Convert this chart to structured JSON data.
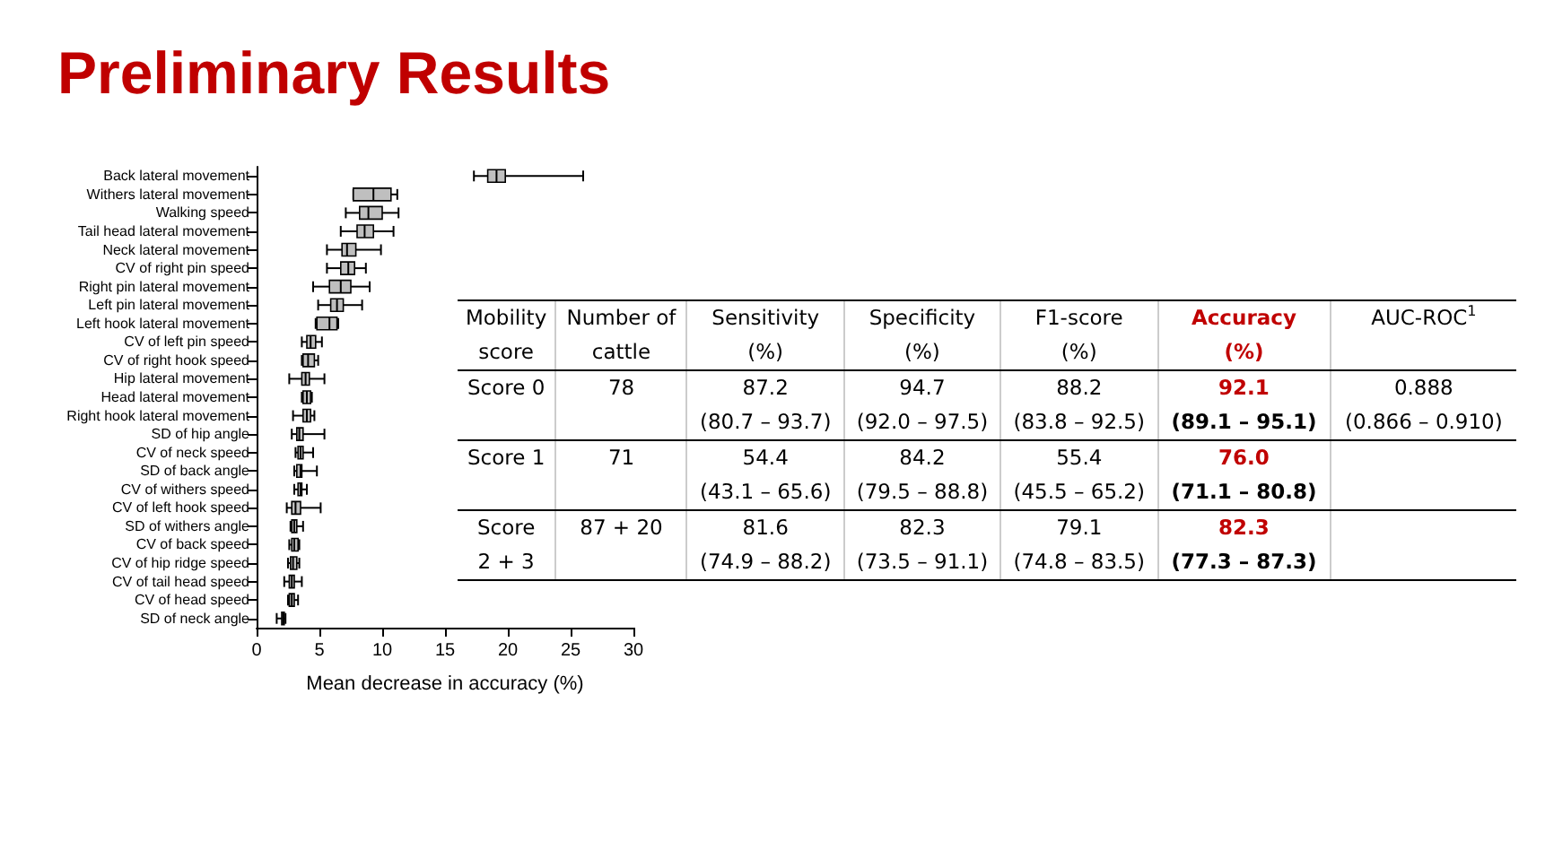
{
  "chart_data": [
    {
      "type": "box",
      "title": "Preliminary Results",
      "xlabel": "Mean decrease in accuracy (%)",
      "orientation": "horizontal",
      "color": "#bfbfbf",
      "categories": [
        "Back lateral movement",
        "Withers lateral movement",
        "Walking speed",
        "Tail head lateral movement",
        "Neck lateral movement",
        "CV of right pin speed",
        "Right pin lateral movement",
        "Left pin lateral movement",
        "Left hook lateral movement",
        "CV of left pin speed",
        "CV of right hook speed",
        "Hip lateral movement",
        "Head lateral movement",
        "Right hook lateral movement",
        "SD of hip angle",
        "CV of neck speed",
        "SD of back angle",
        "CV of withers speed",
        "CV of left hook speed",
        "SD of withers angle",
        "CV of back speed",
        "CV of hip ridge speed",
        "CV of tail head speed",
        "CV of head speed",
        "SD of neck angle"
      ],
      "boxes": [
        {
          "low": 17.3,
          "q1": 18.4,
          "median": 19.1,
          "q3": 19.8,
          "high": 26.0
        },
        {
          "low": 7.7,
          "q1": 7.7,
          "median": 9.3,
          "q3": 10.7,
          "high": 11.2
        },
        {
          "low": 7.1,
          "q1": 8.2,
          "median": 8.9,
          "q3": 10.0,
          "high": 11.3
        },
        {
          "low": 6.7,
          "q1": 8.0,
          "median": 8.6,
          "q3": 9.3,
          "high": 10.9
        },
        {
          "low": 5.6,
          "q1": 6.8,
          "median": 7.2,
          "q3": 7.9,
          "high": 9.9
        },
        {
          "low": 5.6,
          "q1": 6.7,
          "median": 7.3,
          "q3": 7.8,
          "high": 8.7
        },
        {
          "low": 4.5,
          "q1": 5.8,
          "median": 6.7,
          "q3": 7.5,
          "high": 9.0
        },
        {
          "low": 4.9,
          "q1": 5.9,
          "median": 6.4,
          "q3": 6.9,
          "high": 8.4
        },
        {
          "low": 4.7,
          "q1": 4.8,
          "median": 5.8,
          "q3": 6.4,
          "high": 6.5
        },
        {
          "low": 3.6,
          "q1": 4.0,
          "median": 4.3,
          "q3": 4.7,
          "high": 5.2
        },
        {
          "low": 3.6,
          "q1": 3.7,
          "median": 4.1,
          "q3": 4.6,
          "high": 4.9
        },
        {
          "low": 2.6,
          "q1": 3.6,
          "median": 3.9,
          "q3": 4.2,
          "high": 5.4
        },
        {
          "low": 3.6,
          "q1": 3.7,
          "median": 4.0,
          "q3": 4.3,
          "high": 4.4
        },
        {
          "low": 2.9,
          "q1": 3.7,
          "median": 4.0,
          "q3": 4.3,
          "high": 4.6
        },
        {
          "low": 2.8,
          "q1": 3.2,
          "median": 3.4,
          "q3": 3.7,
          "high": 5.4
        },
        {
          "low": 3.1,
          "q1": 3.3,
          "median": 3.5,
          "q3": 3.7,
          "high": 4.5
        },
        {
          "low": 3.0,
          "q1": 3.2,
          "median": 3.5,
          "q3": 3.6,
          "high": 4.8
        },
        {
          "low": 3.0,
          "q1": 3.3,
          "median": 3.5,
          "q3": 3.6,
          "high": 4.0
        },
        {
          "low": 2.4,
          "q1": 2.8,
          "median": 3.1,
          "q3": 3.5,
          "high": 5.1
        },
        {
          "low": 2.7,
          "q1": 2.8,
          "median": 3.0,
          "q3": 3.2,
          "high": 3.7
        },
        {
          "low": 2.6,
          "q1": 2.8,
          "median": 3.0,
          "q3": 3.3,
          "high": 3.4
        },
        {
          "low": 2.5,
          "q1": 2.7,
          "median": 2.9,
          "q3": 3.2,
          "high": 3.4
        },
        {
          "low": 2.2,
          "q1": 2.6,
          "median": 2.8,
          "q3": 3.0,
          "high": 3.6
        },
        {
          "low": 2.5,
          "q1": 2.6,
          "median": 2.8,
          "q3": 3.0,
          "high": 3.3
        },
        {
          "low": 1.6,
          "q1": 2.0,
          "median": 2.1,
          "q3": 2.2,
          "high": 2.3
        }
      ],
      "xlim": [
        0,
        30
      ],
      "xticks": [
        0,
        5,
        10,
        15,
        20,
        25,
        30
      ]
    },
    {
      "type": "other",
      "annotations": [
        "Mobility\nscore",
        "Number of\ncattle",
        "Sensitivity\n(%)",
        "Specificity\n(%)",
        "F1-score\n(%)",
        "Accuracy\n(%)",
        "AUC-ROC$^{1}$",
        "Score 0",
        "78",
        "87.2\n(80.7 – 93.7)",
        "94.7\n(92.0 – 97.5)",
        "88.2\n(83.8 – 92.5)",
        "92.1\n(89.1 – 95.1)",
        "0.888\n(0.866 – 0.910)",
        "Score 1",
        "71",
        "54.4\n(43.1 – 65.6)",
        "84.2\n(79.5 – 88.8)",
        "55.4\n(45.5 – 65.2)",
        "76.0\n(71.1 – 80.8)",
        null,
        "Score\n2 + 3",
        "87 + 20",
        "81.6\n(74.9 – 88.2)",
        "82.3\n(73.5 – 91.1)",
        "79.1\n(74.8 – 83.5)",
        "82.3\n(77.3 – 87.3)",
        null
      ]
    }
  ]
}
